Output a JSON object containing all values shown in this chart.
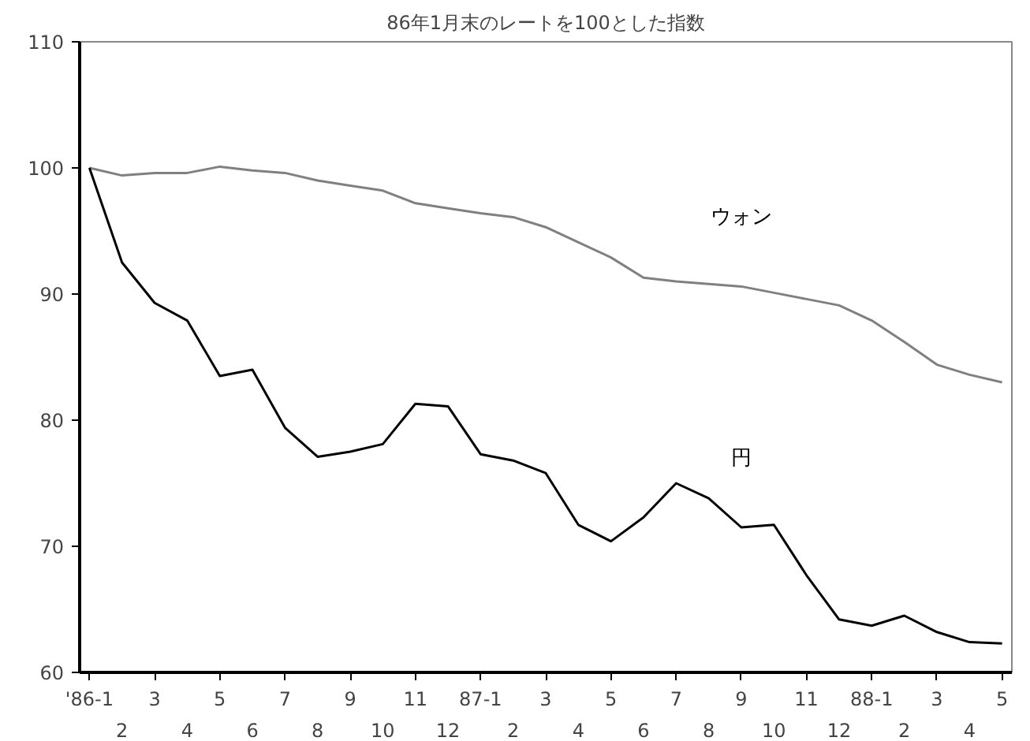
{
  "chart_data": {
    "type": "line",
    "title": "86年1月末のレートを100とした指数",
    "categories": [
      "'86-1",
      "2",
      "3",
      "4",
      "5",
      "6",
      "7",
      "8",
      "9",
      "10",
      "11",
      "12",
      "87-1",
      "2",
      "3",
      "4",
      "5",
      "6",
      "7",
      "8",
      "9",
      "10",
      "11",
      "12",
      "88-1",
      "2",
      "3",
      "4",
      "5"
    ],
    "series": [
      {
        "name": "ウォン",
        "color": "#808080",
        "values": [
          100,
          99.4,
          99.6,
          99.6,
          100.1,
          99.8,
          99.6,
          99.0,
          98.6,
          98.2,
          97.2,
          96.8,
          96.4,
          96.1,
          95.3,
          94.1,
          92.9,
          91.3,
          91.0,
          90.8,
          90.6,
          90.1,
          89.6,
          89.1,
          87.9,
          86.2,
          84.4,
          83.6,
          83.0
        ]
      },
      {
        "name": "円",
        "color": "#000000",
        "values": [
          100,
          92.5,
          89.3,
          87.9,
          83.5,
          84.0,
          79.4,
          77.1,
          77.5,
          78.1,
          81.3,
          81.1,
          77.3,
          76.8,
          75.8,
          71.7,
          70.4,
          72.3,
          75.0,
          73.8,
          71.5,
          71.7,
          67.7,
          64.2,
          63.7,
          64.5,
          63.2,
          62.4,
          62.3
        ]
      }
    ],
    "ylim": [
      60,
      110
    ],
    "yticks": [
      60,
      70,
      80,
      90,
      100,
      110
    ],
    "grid": false
  }
}
